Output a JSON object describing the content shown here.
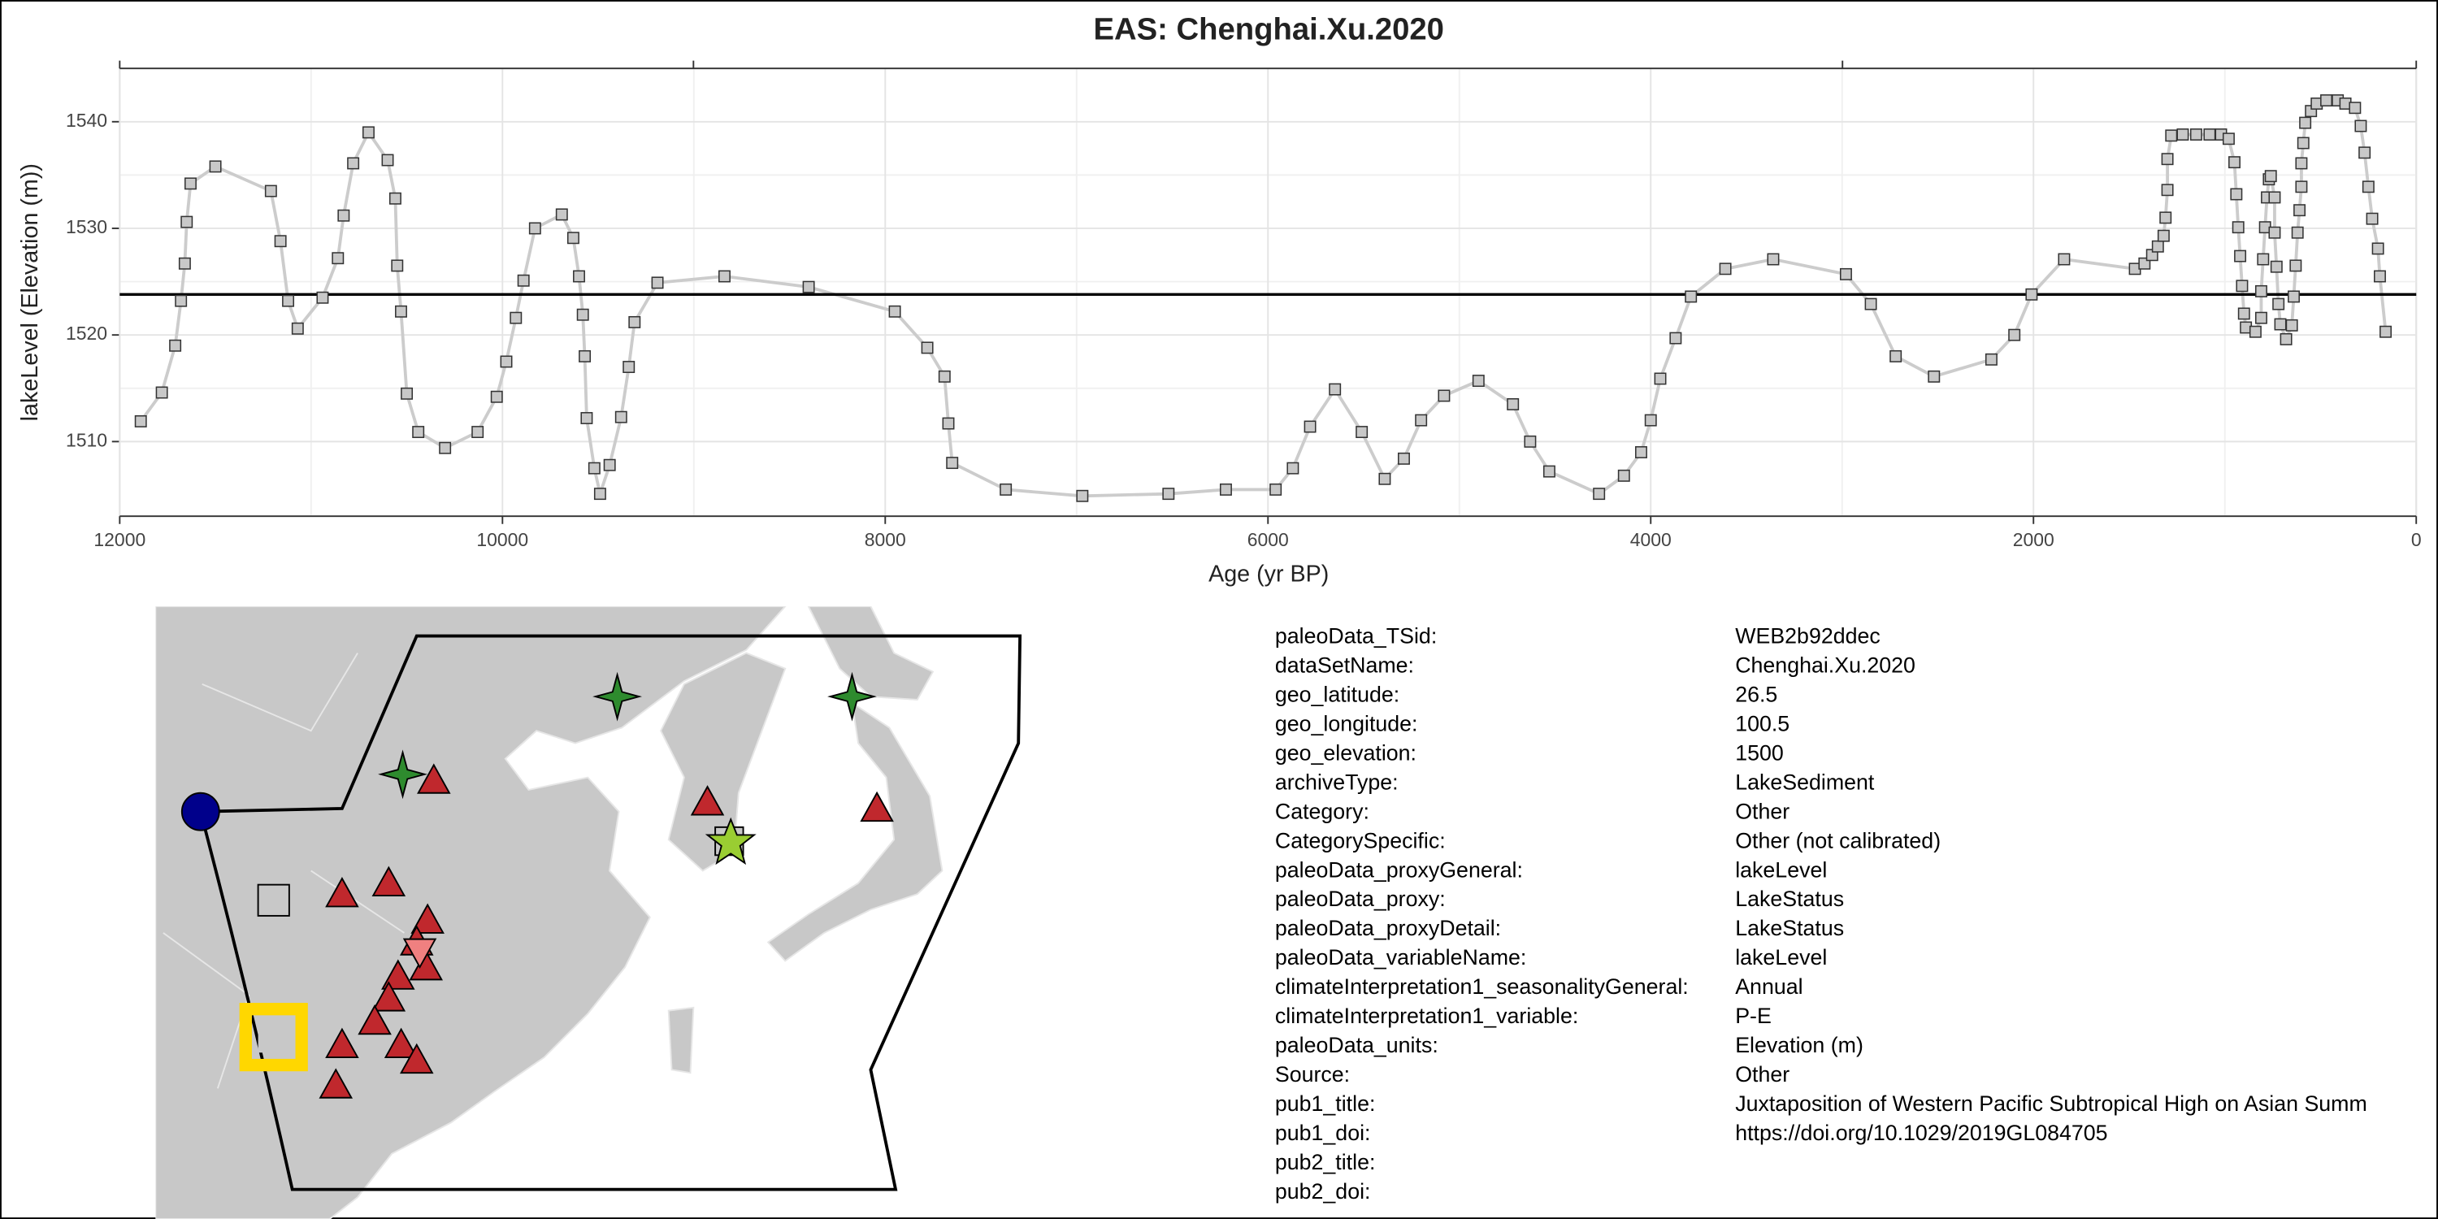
{
  "chart_data": {
    "type": "line",
    "title": "EAS: Chenghai.Xu.2020",
    "xlabel": "Age (yr BP)",
    "ylabel": "lakeLevel (Elevation (m))",
    "xlim": [
      12000,
      0
    ],
    "xticks": [
      12000,
      10000,
      8000,
      6000,
      4000,
      2000,
      0
    ],
    "ylim": [
      1503,
      1545
    ],
    "yticks": [
      1510,
      1520,
      1530,
      1540
    ],
    "grid": true,
    "minor_grid": true,
    "hline": 1523.8,
    "line_color": "#cccccc",
    "marker_color": "#c8c8c8",
    "x": [
      11890,
      11780,
      11710,
      11680,
      11660,
      11650,
      11630,
      11500,
      11210,
      11160,
      11120,
      11070,
      10940,
      10860,
      10830,
      10780,
      10700,
      10600,
      10560,
      10550,
      10530,
      10500,
      10440,
      10300,
      10130,
      10030,
      9980,
      9930,
      9890,
      9830,
      9690,
      9630,
      9600,
      9580,
      9570,
      9560,
      9520,
      9490,
      9440,
      9380,
      9340,
      9310,
      9190,
      8840,
      8400,
      7950,
      7780,
      7690,
      7670,
      7650,
      7370,
      6970,
      6520,
      6220,
      5960,
      5870,
      5780,
      5650,
      5510,
      5390,
      5290,
      5200,
      5080,
      4900,
      4720,
      4630,
      4530,
      4270,
      4140,
      4050,
      4000,
      3950,
      3870,
      3790,
      3610,
      3360,
      2980,
      2850,
      2720,
      2520,
      2220,
      2100,
      2010,
      1840,
      1470,
      1420,
      1380,
      1350,
      1320,
      1310,
      1300,
      1300,
      1280,
      1220,
      1150,
      1080,
      1020,
      980,
      950,
      940,
      930,
      920,
      910,
      900,
      890,
      840,
      810,
      810,
      800,
      790,
      780,
      770,
      760,
      740,
      740,
      730,
      720,
      710,
      680,
      650,
      640,
      630,
      620,
      610,
      600,
      600,
      590,
      580,
      550,
      520,
      470,
      410,
      370,
      320,
      290,
      270,
      250,
      230,
      200,
      190,
      160
    ],
    "values": [
      1511.9,
      1514.6,
      1519.0,
      1523.2,
      1526.7,
      1530.6,
      1534.2,
      1535.8,
      1533.5,
      1528.8,
      1523.2,
      1520.6,
      1523.5,
      1527.2,
      1531.2,
      1536.1,
      1539.0,
      1536.4,
      1532.8,
      1526.5,
      1522.2,
      1514.5,
      1510.9,
      1509.4,
      1510.9,
      1514.2,
      1517.5,
      1521.6,
      1525.1,
      1530.0,
      1531.3,
      1529.1,
      1525.5,
      1521.9,
      1518.0,
      1512.2,
      1507.5,
      1505.1,
      1507.8,
      1512.3,
      1517.0,
      1521.2,
      1524.9,
      1525.5,
      1524.5,
      1522.2,
      1518.8,
      1516.1,
      1511.7,
      1508.0,
      1505.5,
      1504.9,
      1505.1,
      1505.5,
      1505.5,
      1507.5,
      1511.4,
      1514.9,
      1510.9,
      1506.5,
      1508.4,
      1512.0,
      1514.3,
      1515.7,
      1513.5,
      1510.0,
      1507.2,
      1505.1,
      1506.8,
      1509.0,
      1512.0,
      1515.9,
      1519.7,
      1523.6,
      1526.2,
      1527.1,
      1525.7,
      1522.9,
      1518.0,
      1516.1,
      1517.7,
      1520.0,
      1523.8,
      1527.1,
      1526.2,
      1526.7,
      1527.5,
      1528.3,
      1529.3,
      1531.0,
      1533.6,
      1536.5,
      1538.7,
      1538.8,
      1538.8,
      1538.8,
      1538.8,
      1538.4,
      1536.2,
      1533.2,
      1530.1,
      1527.4,
      1524.6,
      1522.0,
      1520.7,
      1520.3,
      1521.6,
      1524.1,
      1527.1,
      1530.1,
      1532.9,
      1534.6,
      1534.9,
      1532.9,
      1529.6,
      1526.4,
      1522.9,
      1521.0,
      1519.6,
      1520.9,
      1523.6,
      1526.5,
      1529.6,
      1531.7,
      1533.9,
      1536.1,
      1538.0,
      1539.9,
      1541.0,
      1541.7,
      1542.0,
      1542.0,
      1541.7,
      1541.3,
      1539.6,
      1537.1,
      1533.9,
      1530.9,
      1528.1,
      1525.5,
      1520.3
    ]
  },
  "metadata": [
    {
      "key": "paleoData_TSid:",
      "value": "WEB2b92ddec"
    },
    {
      "key": "dataSetName:",
      "value": "Chenghai.Xu.2020"
    },
    {
      "key": "geo_latitude:",
      "value": "26.5"
    },
    {
      "key": "geo_longitude:",
      "value": "100.5"
    },
    {
      "key": "geo_elevation:",
      "value": "1500"
    },
    {
      "key": "archiveType:",
      "value": "LakeSediment"
    },
    {
      "key": "Category:",
      "value": "Other"
    },
    {
      "key": "CategorySpecific:",
      "value": "Other (not calibrated)"
    },
    {
      "key": "paleoData_proxyGeneral:",
      "value": "lakeLevel"
    },
    {
      "key": "paleoData_proxy:",
      "value": "LakeStatus"
    },
    {
      "key": "paleoData_proxyDetail:",
      "value": "LakeStatus"
    },
    {
      "key": "paleoData_variableName:",
      "value": "lakeLevel"
    },
    {
      "key": "climateInterpretation1_seasonalityGeneral:",
      "value": "Annual"
    },
    {
      "key": "climateInterpretation1_variable:",
      "value": "P-E"
    },
    {
      "key": "paleoData_units:",
      "value": "Elevation (m)"
    },
    {
      "key": "Source:",
      "value": "Other"
    },
    {
      "key": "pub1_title:",
      "value": "Juxtaposition of Western Pacific Subtropical High on Asian Summ"
    },
    {
      "key": "pub1_doi:",
      "value": "https://doi.org/10.1029/2019GL084705"
    },
    {
      "key": "pub2_title:"
    },
    {
      "key": "pub2_doi:"
    }
  ]
}
